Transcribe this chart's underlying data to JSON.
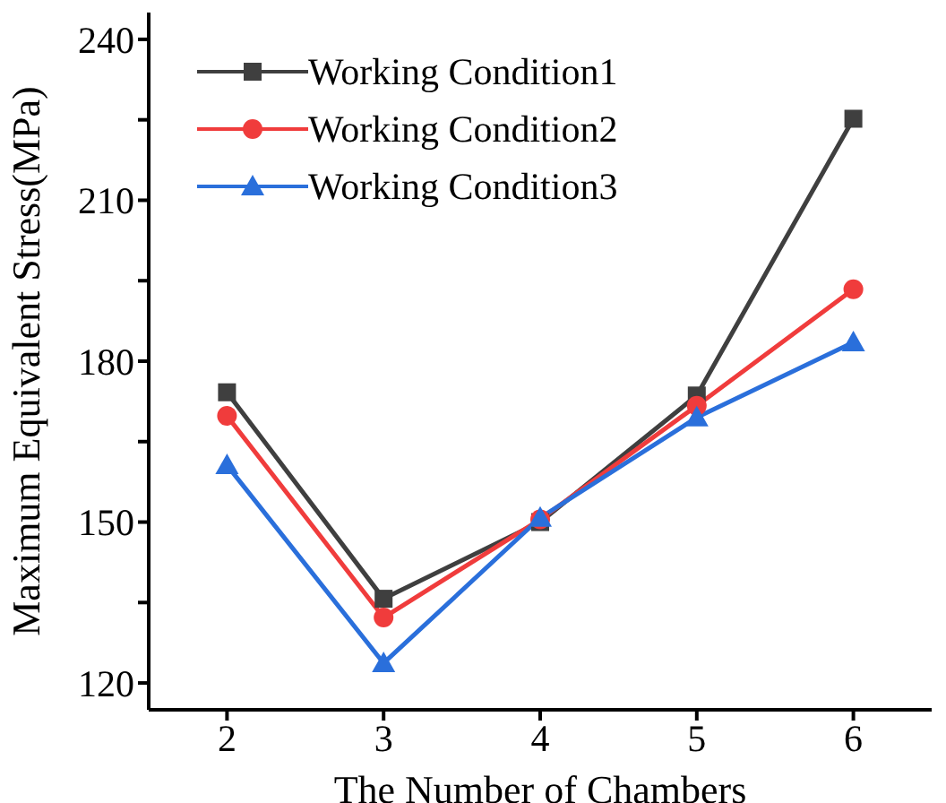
{
  "chart_data": {
    "type": "line",
    "xlabel": "The Number of Chambers",
    "ylabel": "Maximum Equivalent Stress(MPa)",
    "x": [
      2,
      3,
      4,
      5,
      6
    ],
    "series": [
      {
        "name": "Working Condition1",
        "color": "#3f3f3f",
        "marker": "square",
        "values": [
          174.2,
          135.7,
          150,
          173.6,
          225.2
        ]
      },
      {
        "name": "Working Condition2",
        "color": "#f03c3c",
        "marker": "circle",
        "values": [
          169.8,
          132.2,
          150.5,
          171.7,
          193.4
        ]
      },
      {
        "name": "Working Condition3",
        "color": "#2a6fdb",
        "marker": "triangle",
        "values": [
          160.6,
          123.7,
          150.8,
          169.5,
          183.5
        ]
      }
    ],
    "xlim": [
      1.5,
      6.5
    ],
    "xticks": [
      2,
      3,
      4,
      5,
      6
    ],
    "ylim": [
      115,
      245
    ],
    "yticks": [
      120,
      {
        "value": 135,
        "label": null
      },
      150,
      {
        "value": 165,
        "label": null
      },
      180,
      {
        "value": 195,
        "label": null
      },
      210,
      {
        "value": 225,
        "label": null
      },
      240
    ],
    "legend": "top left",
    "grid": false
  }
}
